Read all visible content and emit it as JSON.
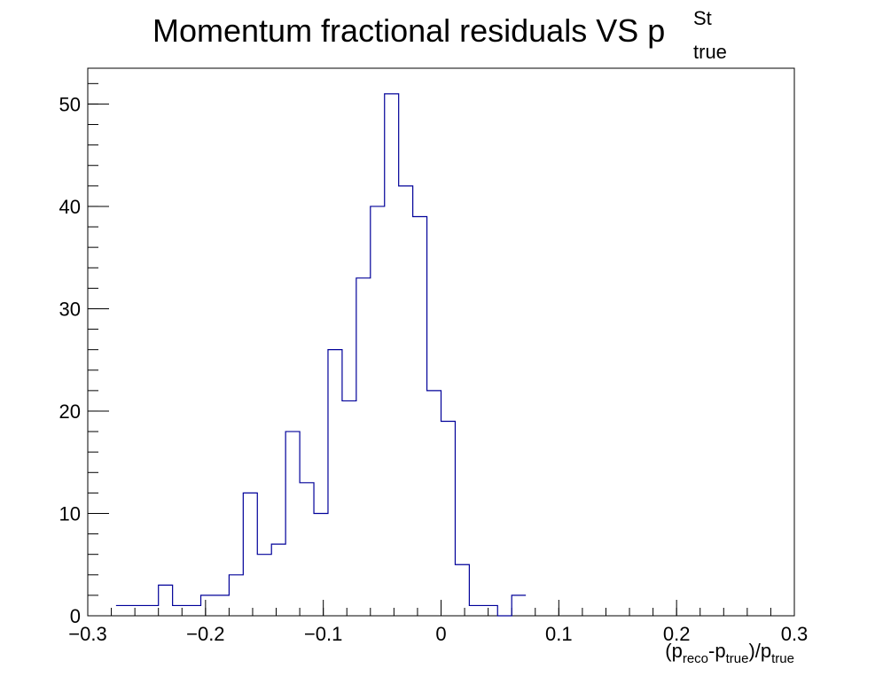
{
  "chart_data": {
    "type": "bar",
    "style": "step-histogram",
    "title": {
      "main": "Momentum fractional residuals VS p",
      "sup": "St",
      "sub": "true"
    },
    "xlabel": {
      "open": "(p",
      "sub1": "reco",
      "mid": "-p",
      "sub2": "true",
      "close": ")/p",
      "sub3": "true"
    },
    "ylabel": "",
    "xlim": [
      -0.3,
      0.3
    ],
    "ylim": [
      0,
      53.5
    ],
    "x_ticks": [
      -0.3,
      -0.2,
      -0.1,
      0,
      0.1,
      0.2,
      0.3
    ],
    "x_tick_labels": [
      "−0.3",
      "−0.2",
      "−0.1",
      "0",
      "0.1",
      "0.2",
      "0.3"
    ],
    "y_ticks": [
      0,
      10,
      20,
      30,
      40,
      50
    ],
    "y_tick_labels": [
      "0",
      "10",
      "20",
      "30",
      "40",
      "50"
    ],
    "bin_width": 0.012,
    "bin_start": -0.276,
    "values": [
      1,
      1,
      1,
      3,
      1,
      1,
      2,
      2,
      4,
      12,
      6,
      7,
      18,
      13,
      10,
      26,
      21,
      33,
      40,
      51,
      42,
      39,
      22,
      19,
      5,
      1,
      1,
      0,
      2
    ],
    "line_color": "#000099",
    "grid": false
  }
}
